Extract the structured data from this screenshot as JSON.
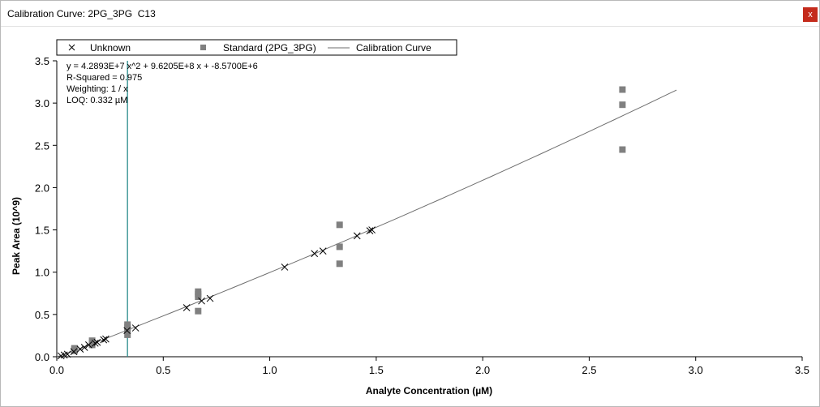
{
  "window": {
    "title": "Calibration Curve: 2PG_3PG  C13",
    "close_label": "x"
  },
  "colors": {
    "standard": "#808080",
    "unknown": "#000000",
    "curve": "#6e6e6e",
    "loq_line": "#2a8c8c",
    "close_button": "#c42b1c"
  },
  "chart_data": {
    "type": "scatter",
    "xlabel": "Analyte Concentration (µM)",
    "ylabel": "Peak Area (10^9)",
    "xlim": [
      0,
      3.5
    ],
    "ylim": [
      0,
      3.5
    ],
    "x_ticks": [
      "0.0",
      "0.5",
      "1.0",
      "1.5",
      "2.0",
      "2.5",
      "3.0",
      "3.5"
    ],
    "y_ticks": [
      "0.0",
      "0.5",
      "1.0",
      "1.5",
      "2.0",
      "2.5",
      "3.0",
      "3.5"
    ],
    "legend_position": "top",
    "legend": [
      {
        "marker": "x",
        "label": "Unknown"
      },
      {
        "marker": "square",
        "label": "Standard (2PG_3PG)"
      },
      {
        "marker": "line",
        "label": "Calibration Curve"
      }
    ],
    "annotations": [
      "y = 4.2893E+7 x^2 + 9.6205E+8 x + -8.5700E+6",
      "R-Squared = 0.975",
      "Weighting: 1 / x",
      "LOQ: 0.332 µM"
    ],
    "loq": 0.332,
    "curve": {
      "a": 0.042893,
      "b": 0.96205,
      "c": -0.00857,
      "x_start": 0,
      "x_end": 2.91
    },
    "series": [
      {
        "name": "Standard (2PG_3PG)",
        "marker": "square",
        "points": [
          [
            0.083,
            0.07
          ],
          [
            0.083,
            0.09
          ],
          [
            0.083,
            0.1
          ],
          [
            0.166,
            0.14
          ],
          [
            0.166,
            0.16
          ],
          [
            0.166,
            0.19
          ],
          [
            0.332,
            0.26
          ],
          [
            0.332,
            0.31
          ],
          [
            0.332,
            0.35
          ],
          [
            0.332,
            0.38
          ],
          [
            0.664,
            0.54
          ],
          [
            0.664,
            0.71
          ],
          [
            0.664,
            0.74
          ],
          [
            0.664,
            0.77
          ],
          [
            1.328,
            1.1
          ],
          [
            1.328,
            1.3
          ],
          [
            1.328,
            1.56
          ],
          [
            2.656,
            2.45
          ],
          [
            2.656,
            2.98
          ],
          [
            2.656,
            3.16
          ]
        ]
      },
      {
        "name": "Unknown",
        "marker": "x",
        "points": [
          [
            0.02,
            0.01
          ],
          [
            0.035,
            0.02
          ],
          [
            0.05,
            0.03
          ],
          [
            0.08,
            0.06
          ],
          [
            0.11,
            0.09
          ],
          [
            0.13,
            0.11
          ],
          [
            0.15,
            0.14
          ],
          [
            0.18,
            0.16
          ],
          [
            0.19,
            0.17
          ],
          [
            0.22,
            0.2
          ],
          [
            0.23,
            0.21
          ],
          [
            0.33,
            0.31
          ],
          [
            0.37,
            0.34
          ],
          [
            0.61,
            0.58
          ],
          [
            0.68,
            0.66
          ],
          [
            0.72,
            0.69
          ],
          [
            1.07,
            1.06
          ],
          [
            1.21,
            1.22
          ],
          [
            1.25,
            1.25
          ],
          [
            1.41,
            1.43
          ],
          [
            1.47,
            1.49
          ],
          [
            1.48,
            1.5
          ]
        ]
      }
    ]
  }
}
